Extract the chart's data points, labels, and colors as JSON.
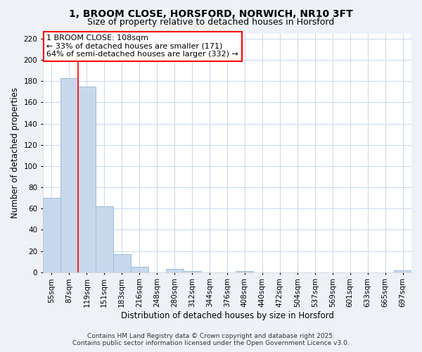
{
  "title": "1, BROOM CLOSE, HORSFORD, NORWICH, NR10 3FT",
  "subtitle": "Size of property relative to detached houses in Horsford",
  "xlabel": "Distribution of detached houses by size in Horsford",
  "ylabel": "Number of detached properties",
  "bar_color": "#c8d8ec",
  "bar_edge_color": "#a0bcd8",
  "grid_color": "#c8d8ec",
  "bins": [
    "55sqm",
    "87sqm",
    "119sqm",
    "151sqm",
    "183sqm",
    "216sqm",
    "248sqm",
    "280sqm",
    "312sqm",
    "344sqm",
    "376sqm",
    "408sqm",
    "440sqm",
    "472sqm",
    "504sqm",
    "537sqm",
    "569sqm",
    "601sqm",
    "633sqm",
    "665sqm",
    "697sqm"
  ],
  "values": [
    70,
    183,
    175,
    62,
    17,
    5,
    0,
    3,
    1,
    0,
    0,
    1,
    0,
    0,
    0,
    0,
    0,
    0,
    0,
    0,
    2
  ],
  "ylim": [
    0,
    225
  ],
  "yticks": [
    0,
    20,
    40,
    60,
    80,
    100,
    120,
    140,
    160,
    180,
    200,
    220
  ],
  "red_line_x": 1.5,
  "annotation_title": "1 BROOM CLOSE: 108sqm",
  "annotation_line1": "← 33% of detached houses are smaller (171)",
  "annotation_line2": "64% of semi-detached houses are larger (332) →",
  "footer1": "Contains HM Land Registry data © Crown copyright and database right 2025.",
  "footer2": "Contains public sector information licensed under the Open Government Licence v3.0.",
  "bg_color": "#eef2f7",
  "plot_bg_color": "#ffffff",
  "title_fontsize": 10,
  "subtitle_fontsize": 9,
  "axis_label_fontsize": 8.5,
  "tick_fontsize": 7.5,
  "footer_fontsize": 6.5
}
